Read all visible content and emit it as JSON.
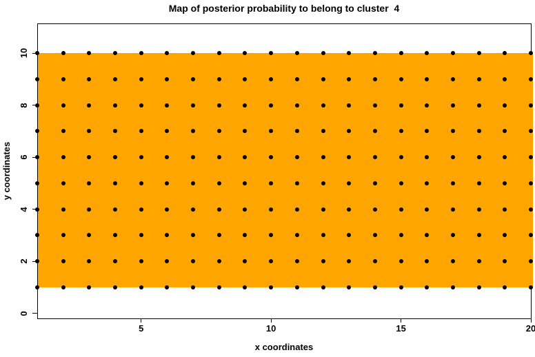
{
  "chart_data": {
    "type": "scatter",
    "title": "Map of posterior probability to belong to cluster  4",
    "xlabel": "x coordinates",
    "ylabel": "y coordinates",
    "x_ticks": [
      5,
      10,
      15,
      20
    ],
    "y_ticks": [
      0,
      2,
      4,
      6,
      8,
      10
    ],
    "xlim": [
      1,
      20
    ],
    "ylim": [
      -0.19,
      11.14
    ],
    "grid": false,
    "legend": "none",
    "background_color": "#FFFFFF",
    "fill_region": {
      "x": [
        1,
        20
      ],
      "y": [
        1,
        10
      ],
      "color": "#FFA500"
    },
    "points": {
      "marker": "filled-circle",
      "color": "#000000",
      "x_values": [
        1,
        2,
        3,
        4,
        5,
        6,
        7,
        8,
        9,
        10,
        11,
        12,
        13,
        14,
        15,
        16,
        17,
        18,
        19,
        20
      ],
      "y_values": [
        1,
        2,
        3,
        4,
        5,
        6,
        7,
        8,
        9,
        10
      ]
    }
  }
}
